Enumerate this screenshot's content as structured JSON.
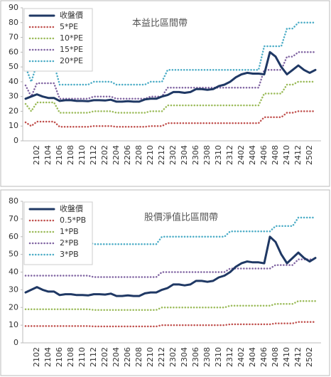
{
  "chart_data": [
    {
      "type": "line",
      "title": "本益比區間帶",
      "legend": "upper left",
      "grid": false,
      "categories": [
        null,
        null,
        "2102",
        null,
        "2104",
        null,
        "2106",
        null,
        "2108",
        null,
        "2110",
        null,
        "2112",
        null,
        "2202",
        null,
        "2204",
        null,
        "2206",
        null,
        "2208",
        null,
        "2210",
        null,
        "2212",
        null,
        "2302",
        null,
        "2304",
        null,
        "2306",
        null,
        "2308",
        null,
        "2310",
        null,
        "2312",
        null,
        "2402",
        null,
        "2404",
        null,
        "2406",
        null,
        "2408",
        null,
        "2410",
        null,
        "2412",
        null,
        "2502",
        null
      ],
      "ylim": [
        0,
        90
      ],
      "yticks": [
        0,
        10,
        20,
        30,
        40,
        50,
        60,
        70,
        80,
        90
      ],
      "series": [
        {
          "name": "收盤價",
          "color": "#1f3864",
          "values": [
            28.5,
            30,
            31.5,
            30,
            29,
            29,
            27,
            27.5,
            27.5,
            27,
            27,
            26.8,
            27.5,
            27.5,
            27.3,
            27.8,
            26.5,
            26.5,
            26.8,
            26.5,
            26.5,
            28,
            28.5,
            28.5,
            30,
            31,
            33,
            33,
            32.5,
            33,
            35,
            35,
            34.5,
            35,
            37,
            38,
            40,
            43,
            45,
            46,
            45.5,
            45.5,
            45,
            60,
            57,
            50,
            45,
            48,
            51,
            48,
            46,
            48
          ]
        },
        {
          "name": "5*PE",
          "color": "#c0504d",
          "values": [
            12.5,
            10,
            13,
            13,
            13,
            13,
            9.5,
            9.5,
            9.5,
            9.5,
            9.5,
            9.5,
            10,
            10,
            10,
            10,
            9.5,
            9.5,
            9.5,
            9.5,
            9.5,
            9.5,
            10,
            10,
            10,
            12,
            12,
            12,
            12,
            12,
            12,
            12,
            12,
            12,
            12,
            12,
            12,
            12,
            12,
            12,
            12,
            12,
            16,
            16,
            16,
            16,
            19,
            19,
            20,
            20,
            20,
            20
          ]
        },
        {
          "name": "10*PE",
          "color": "#9bbb59",
          "values": [
            25,
            20,
            26,
            26,
            26,
            26,
            19,
            19,
            19,
            19,
            19,
            19,
            20,
            20,
            20,
            20,
            19,
            19,
            19,
            19,
            19,
            19,
            20,
            20,
            20,
            24,
            24,
            24,
            24,
            24,
            24,
            24,
            24,
            24,
            24,
            24,
            24,
            24,
            24,
            24,
            24,
            24,
            32,
            32,
            32,
            32,
            38,
            38,
            40,
            40,
            40,
            40
          ]
        },
        {
          "name": "15*PE",
          "color": "#8064a2",
          "values": [
            37.5,
            30,
            39,
            39,
            39,
            39,
            28.5,
            28.5,
            28.5,
            28.5,
            28.5,
            28.5,
            30,
            30,
            30,
            30,
            28.5,
            28.5,
            28.5,
            28.5,
            28.5,
            28.5,
            30,
            30,
            30,
            36,
            36,
            36,
            36,
            36,
            36,
            36,
            36,
            36,
            36,
            36,
            36,
            36,
            36,
            36,
            36,
            36,
            48,
            48,
            48,
            48,
            57,
            57,
            60,
            60,
            60,
            60
          ]
        },
        {
          "name": "20*PE",
          "color": "#4bacc6",
          "values": [
            50,
            40,
            52,
            52,
            52,
            52,
            38,
            38,
            38,
            38,
            38,
            38,
            40,
            40,
            40,
            40,
            38,
            38,
            38,
            38,
            38,
            38,
            40,
            40,
            40,
            48,
            48,
            48,
            48,
            48,
            48,
            48,
            48,
            48,
            48,
            48,
            48,
            48,
            48,
            48,
            48,
            48,
            64,
            64,
            64,
            64,
            76,
            76,
            80,
            80,
            80,
            80
          ]
        }
      ]
    },
    {
      "type": "line",
      "title": "股價淨值比區間帶",
      "legend": "upper left",
      "grid": false,
      "categories": [
        null,
        null,
        "2102",
        null,
        "2104",
        null,
        "2106",
        null,
        "2108",
        null,
        "2110",
        null,
        "2112",
        null,
        "2202",
        null,
        "2204",
        null,
        "2206",
        null,
        "2208",
        null,
        "2210",
        null,
        "2212",
        null,
        "2302",
        null,
        "2304",
        null,
        "2306",
        null,
        "2308",
        null,
        "2310",
        null,
        "2312",
        null,
        "2402",
        null,
        "2404",
        null,
        "2406",
        null,
        "2408",
        null,
        "2410",
        null,
        "2412",
        null,
        "2502",
        null
      ],
      "ylim": [
        0,
        80
      ],
      "yticks": [
        0,
        10,
        20,
        30,
        40,
        50,
        60,
        70,
        80
      ],
      "series": [
        {
          "name": "收盤價",
          "color": "#1f3864",
          "values": [
            28.5,
            30,
            31.5,
            30,
            29,
            29,
            27,
            27.5,
            27.5,
            27,
            27,
            26.8,
            27.5,
            27.5,
            27.3,
            27.8,
            26.5,
            26.5,
            26.8,
            26.5,
            26.5,
            28,
            28.5,
            28.5,
            30,
            31,
            33,
            33,
            32.5,
            33,
            35,
            35,
            34.5,
            35,
            37,
            38,
            40,
            43,
            45,
            46,
            45.5,
            45.5,
            45,
            60,
            57,
            50,
            45,
            48,
            51,
            48,
            46,
            48
          ]
        },
        {
          "name": "0.5*PB",
          "color": "#c0504d",
          "values": [
            9.5,
            9.5,
            9.5,
            9.5,
            9.5,
            9.5,
            9.5,
            9.5,
            9.5,
            9.5,
            9.5,
            9.5,
            9.3,
            9.3,
            9.3,
            9.3,
            9.3,
            9.3,
            9.3,
            9.3,
            9.3,
            9.3,
            9.3,
            9.3,
            10,
            10,
            10,
            10,
            10,
            10,
            10,
            10,
            10,
            10,
            10,
            10,
            10.5,
            10.5,
            10.5,
            10.5,
            10.5,
            10.5,
            10.5,
            10.5,
            11,
            11,
            11,
            11,
            11.8,
            11.8,
            11.8,
            11.8
          ]
        },
        {
          "name": "1*PB",
          "color": "#9bbb59",
          "values": [
            19,
            19,
            19,
            19,
            19,
            19,
            19,
            19,
            19,
            19,
            19,
            19,
            18.6,
            18.6,
            18.6,
            18.6,
            18.6,
            18.6,
            18.6,
            18.6,
            18.6,
            18.6,
            18.6,
            18.6,
            20,
            20,
            20,
            20,
            20,
            20,
            20,
            20,
            20,
            20,
            20,
            20,
            21,
            21,
            21,
            21,
            21,
            21,
            21,
            21,
            22,
            22,
            22,
            22,
            23.6,
            23.6,
            23.6,
            23.6
          ]
        },
        {
          "name": "2*PB",
          "color": "#8064a2",
          "values": [
            38,
            38,
            38,
            38,
            38,
            38,
            38,
            38,
            38,
            38,
            38,
            38,
            37.2,
            37.2,
            37.2,
            37.2,
            37.2,
            37.2,
            37.2,
            37.2,
            37.2,
            37.2,
            37.2,
            37.2,
            40,
            40,
            40,
            40,
            40,
            40,
            40,
            40,
            40,
            40,
            40,
            40,
            42,
            42,
            42,
            42,
            42,
            42,
            42,
            42,
            44,
            44,
            44,
            44,
            47.2,
            47.2,
            47.2,
            47.2
          ]
        },
        {
          "name": "3*PB",
          "color": "#4bacc6",
          "values": [
            57,
            57,
            57,
            57,
            57,
            57,
            57,
            57,
            57,
            57,
            57,
            57,
            55.8,
            55.8,
            55.8,
            55.8,
            55.8,
            55.8,
            55.8,
            55.8,
            55.8,
            55.8,
            55.8,
            55.8,
            60,
            60,
            60,
            60,
            60,
            60,
            60,
            60,
            60,
            60,
            60,
            60,
            63,
            63,
            63,
            63,
            63,
            63,
            63,
            63,
            66,
            66,
            66,
            66,
            70.8,
            70.8,
            70.8,
            70.8
          ]
        }
      ]
    }
  ]
}
